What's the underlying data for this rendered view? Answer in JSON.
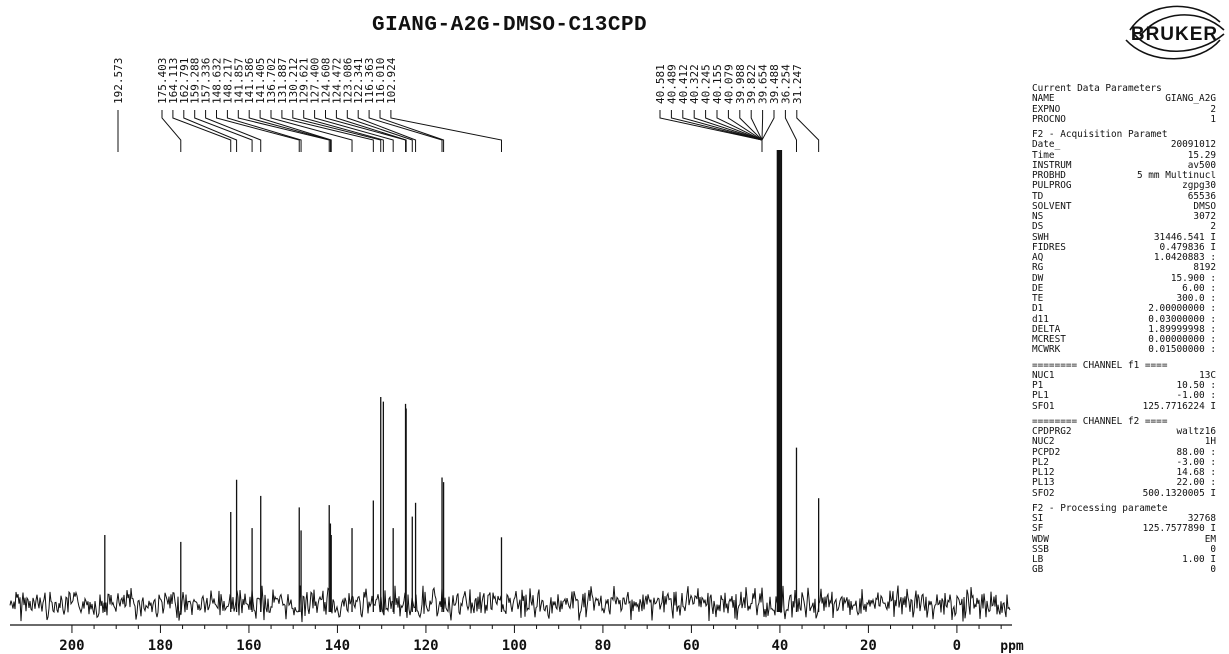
{
  "chart_data": {
    "type": "line",
    "title": "GIANG-A2G-DMSO-C13CPD",
    "xlabel": "ppm",
    "xlim": [
      214,
      -12
    ],
    "x_reversed": true,
    "ylim": [
      0,
      1
    ],
    "x_ticks": [
      200,
      180,
      160,
      140,
      120,
      100,
      80,
      60,
      40,
      20,
      0
    ],
    "grid": false,
    "peak_labels_left": [
      "192.573"
    ],
    "peak_labels_aromatic": [
      "175.403",
      "164.113",
      "162.791",
      "159.288",
      "157.336",
      "148.632",
      "148.217",
      "141.857",
      "141.586",
      "141.405",
      "136.702",
      "131.887",
      "130.212",
      "129.621",
      "127.400",
      "124.608",
      "124.472",
      "123.086",
      "122.341",
      "116.363",
      "116.010",
      "102.924"
    ],
    "peak_labels_aliphatic": [
      "40.581",
      "40.489",
      "40.412",
      "40.322",
      "40.245",
      "40.155",
      "40.079",
      "39.988",
      "39.822",
      "39.654",
      "39.488",
      "36.254",
      "31.247"
    ],
    "peaks": [
      {
        "ppm": 192.573,
        "intensity": 0.3
      },
      {
        "ppm": 175.403,
        "intensity": 0.27
      },
      {
        "ppm": 164.113,
        "intensity": 0.4
      },
      {
        "ppm": 162.791,
        "intensity": 0.54
      },
      {
        "ppm": 159.288,
        "intensity": 0.33
      },
      {
        "ppm": 157.336,
        "intensity": 0.47
      },
      {
        "ppm": 148.632,
        "intensity": 0.42
      },
      {
        "ppm": 148.217,
        "intensity": 0.32
      },
      {
        "ppm": 141.857,
        "intensity": 0.43
      },
      {
        "ppm": 141.586,
        "intensity": 0.35
      },
      {
        "ppm": 141.405,
        "intensity": 0.3
      },
      {
        "ppm": 136.702,
        "intensity": 0.33
      },
      {
        "ppm": 131.887,
        "intensity": 0.45
      },
      {
        "ppm": 130.212,
        "intensity": 0.9
      },
      {
        "ppm": 129.621,
        "intensity": 0.88
      },
      {
        "ppm": 127.4,
        "intensity": 0.33
      },
      {
        "ppm": 124.608,
        "intensity": 0.87
      },
      {
        "ppm": 124.472,
        "intensity": 0.85
      },
      {
        "ppm": 123.086,
        "intensity": 0.38
      },
      {
        "ppm": 122.341,
        "intensity": 0.44
      },
      {
        "ppm": 116.363,
        "intensity": 0.55
      },
      {
        "ppm": 116.01,
        "intensity": 0.53
      },
      {
        "ppm": 102.924,
        "intensity": 0.29
      },
      {
        "ppm": 40.581,
        "intensity": 2.3
      },
      {
        "ppm": 40.412,
        "intensity": 2.3
      },
      {
        "ppm": 40.245,
        "intensity": 2.3
      },
      {
        "ppm": 40.079,
        "intensity": 2.3
      },
      {
        "ppm": 39.822,
        "intensity": 2.3
      },
      {
        "ppm": 39.654,
        "intensity": 2.3
      },
      {
        "ppm": 36.254,
        "intensity": 0.68
      },
      {
        "ppm": 31.247,
        "intensity": 0.46
      }
    ]
  },
  "logo": {
    "text": "BRUKER"
  },
  "params": {
    "header": "Current Data Parameters",
    "current": [
      {
        "k": "NAME",
        "v": "GIANG_A2G"
      },
      {
        "k": "EXPNO",
        "v": "2"
      },
      {
        "k": "PROCNO",
        "v": "1"
      }
    ],
    "acq_header": "F2 - Acquisition Paramet",
    "acq": [
      {
        "k": "Date_",
        "v": "20091012"
      },
      {
        "k": "Time",
        "v": "15.29"
      },
      {
        "k": "INSTRUM",
        "v": "av500"
      },
      {
        "k": "PROBHD",
        "v": "5 mm Multinucl"
      },
      {
        "k": "PULPROG",
        "v": "zgpg30"
      },
      {
        "k": "TD",
        "v": "65536"
      },
      {
        "k": "SOLVENT",
        "v": "DMSO"
      },
      {
        "k": "NS",
        "v": "3072"
      },
      {
        "k": "DS",
        "v": "2"
      },
      {
        "k": "SWH",
        "v": "31446.541 I"
      },
      {
        "k": "FIDRES",
        "v": "0.479836 I"
      },
      {
        "k": "AQ",
        "v": "1.0420883 :"
      },
      {
        "k": "RG",
        "v": "8192"
      },
      {
        "k": "DW",
        "v": "15.900 :"
      },
      {
        "k": "DE",
        "v": "6.00 :"
      },
      {
        "k": "TE",
        "v": "300.0 :"
      },
      {
        "k": "D1",
        "v": "2.00000000 :"
      },
      {
        "k": "d11",
        "v": "0.03000000 :"
      },
      {
        "k": "DELTA",
        "v": "1.89999998 :"
      },
      {
        "k": "MCREST",
        "v": "0.00000000 :"
      },
      {
        "k": "MCWRK",
        "v": "0.01500000 :"
      }
    ],
    "ch1_header": "======== CHANNEL f1 ====",
    "ch1": [
      {
        "k": "NUC1",
        "v": "13C"
      },
      {
        "k": "P1",
        "v": "10.50 :"
      },
      {
        "k": "PL1",
        "v": "-1.00 :"
      },
      {
        "k": "SFO1",
        "v": "125.7716224 I"
      }
    ],
    "ch2_header": "======== CHANNEL f2 ====",
    "ch2": [
      {
        "k": "CPDPRG2",
        "v": "waltz16"
      },
      {
        "k": "NUC2",
        "v": "1H"
      },
      {
        "k": "PCPD2",
        "v": "88.00 :"
      },
      {
        "k": "PL2",
        "v": "-3.00 :"
      },
      {
        "k": "PL12",
        "v": "14.68 :"
      },
      {
        "k": "PL13",
        "v": "22.00 :"
      },
      {
        "k": "SFO2",
        "v": "500.1320005 I"
      }
    ],
    "proc_header": "F2 - Processing paramete",
    "proc": [
      {
        "k": "SI",
        "v": "32768"
      },
      {
        "k": "SF",
        "v": "125.7577890 I"
      },
      {
        "k": "WDW",
        "v": "EM"
      },
      {
        "k": "SSB",
        "v": "0"
      },
      {
        "k": "LB",
        "v": "1.00 I"
      },
      {
        "k": "GB",
        "v": "0"
      }
    ]
  }
}
